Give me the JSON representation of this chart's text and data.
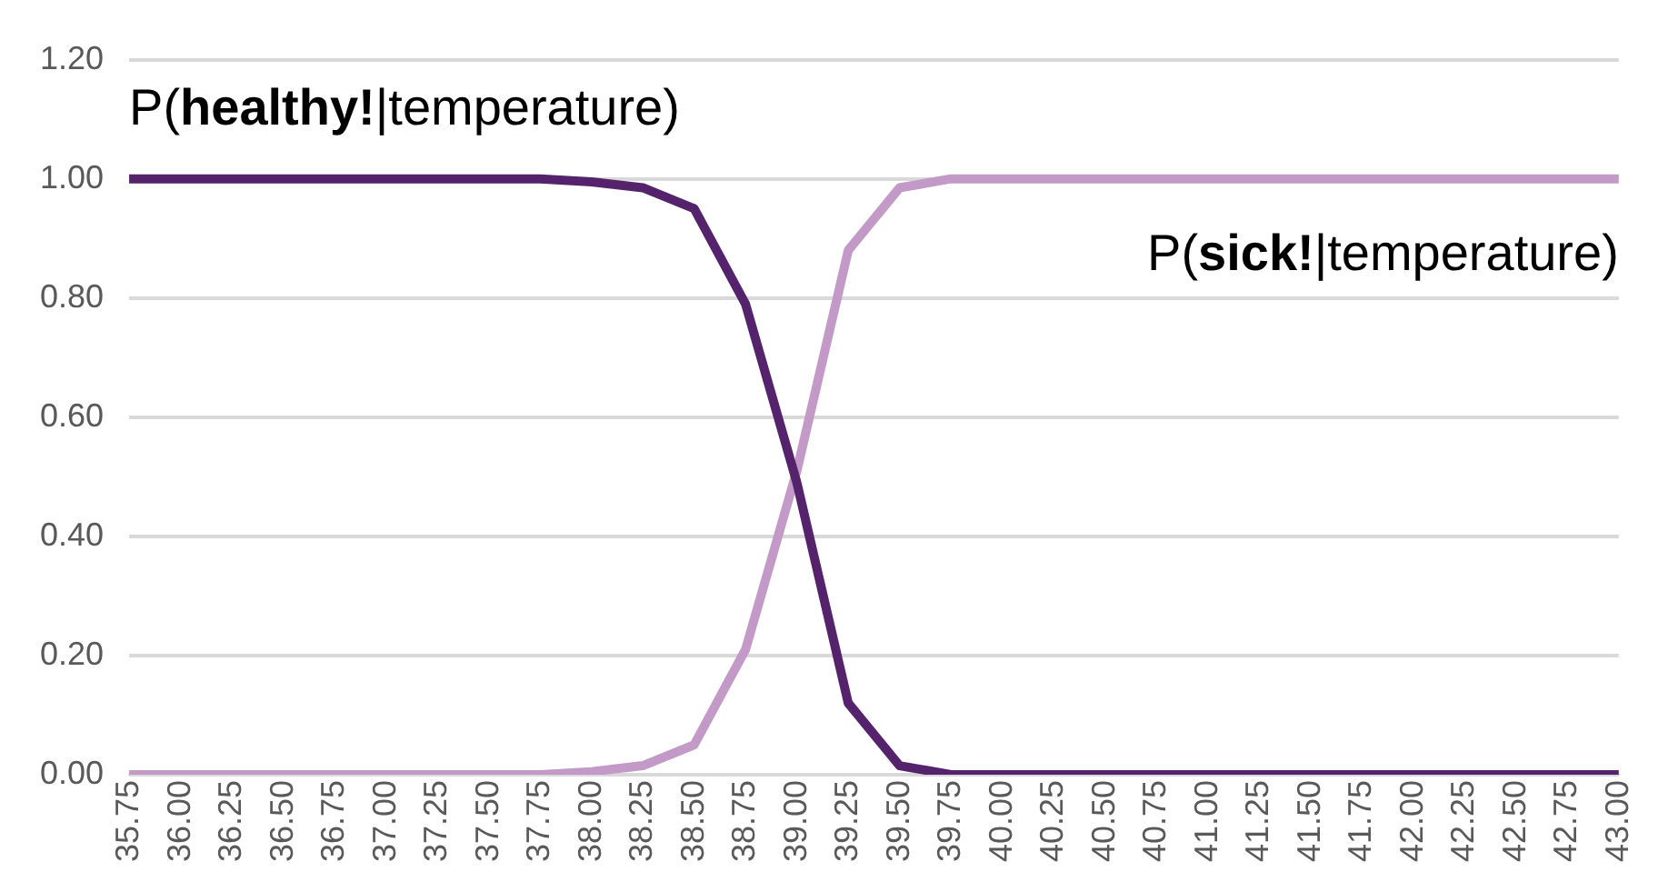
{
  "chart_data": {
    "type": "line",
    "categories": [
      "35.75",
      "36.00",
      "36.25",
      "36.50",
      "36.75",
      "37.00",
      "37.25",
      "37.50",
      "37.75",
      "38.00",
      "38.25",
      "38.50",
      "38.75",
      "39.00",
      "39.25",
      "39.50",
      "39.75",
      "40.00",
      "40.25",
      "40.50",
      "40.75",
      "41.00",
      "41.25",
      "41.50",
      "41.75",
      "42.00",
      "42.25",
      "42.50",
      "42.75",
      "43.00"
    ],
    "series": [
      {
        "name": "P(healthy!|temperature)",
        "color": "#55236b",
        "values": [
          1,
          1,
          1,
          1,
          1,
          1,
          1,
          1,
          1,
          0.995,
          0.985,
          0.95,
          0.79,
          0.49,
          0.12,
          0.015,
          0,
          0,
          0,
          0,
          0,
          0,
          0,
          0,
          0,
          0,
          0,
          0,
          0,
          0
        ]
      },
      {
        "name": "P(sick!|temperature)",
        "color": "#c39ac7",
        "values": [
          0,
          0,
          0,
          0,
          0,
          0,
          0,
          0,
          0,
          0.005,
          0.015,
          0.05,
          0.21,
          0.51,
          0.88,
          0.985,
          1,
          1,
          1,
          1,
          1,
          1,
          1,
          1,
          1,
          1,
          1,
          1,
          1,
          1
        ]
      }
    ],
    "ylim": [
      0,
      1.2
    ],
    "yticks": [
      {
        "value": 0,
        "label": "0.00"
      },
      {
        "value": 0.2,
        "label": "0.20"
      },
      {
        "value": 0.4,
        "label": "0.40"
      },
      {
        "value": 0.6,
        "label": "0.60"
      },
      {
        "value": 0.8,
        "label": "0.80"
      },
      {
        "value": 1,
        "label": "1.00"
      },
      {
        "value": 1.2,
        "label": "1.20"
      }
    ],
    "grid": "y",
    "marker": "none",
    "line_style": "solid",
    "legend": false
  }
}
